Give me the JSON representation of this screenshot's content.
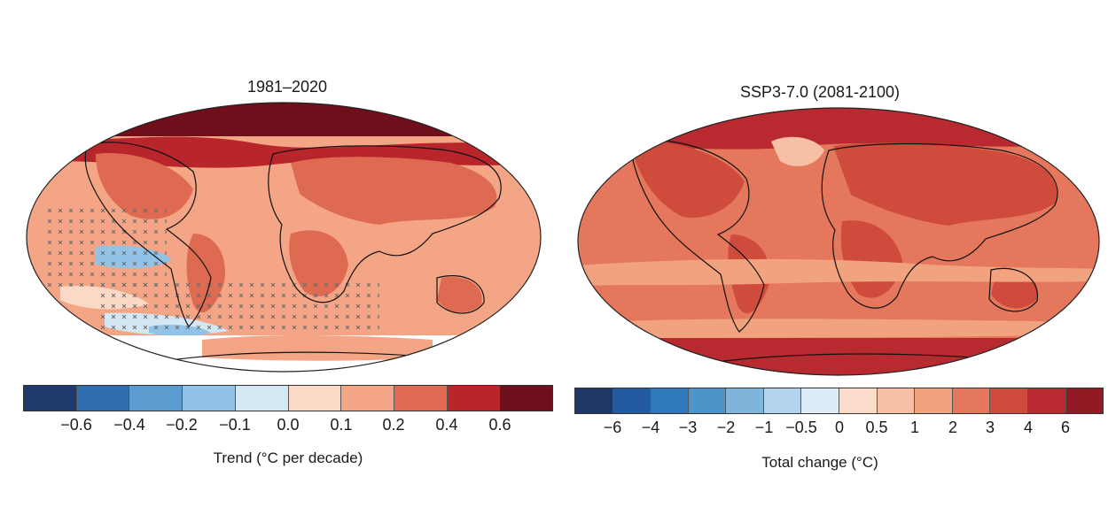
{
  "maps": [
    {
      "title": "1981–2020",
      "colorbar": {
        "label": "Trend (°C per decade)",
        "ticks": [
          "−0.6",
          "−0.4",
          "−0.2",
          "−0.1",
          "0.0",
          "0.1",
          "0.2",
          "0.4",
          "0.6"
        ],
        "colors": [
          "#1f3a6d",
          "#2f6fb0",
          "#5b9bd0",
          "#92c3e6",
          "#d3e7f4",
          "#fbd9c6",
          "#f3a585",
          "#de6a52",
          "#b8252b",
          "#6f0f1c"
        ]
      }
    },
    {
      "title": "SSP3-7.0 (2081-2100)",
      "colorbar": {
        "label": "Total change (°C)",
        "ticks": [
          "−6",
          "−4",
          "−3",
          "−2",
          "−1",
          "−0.5",
          "0",
          "0.5",
          "1",
          "2",
          "3",
          "4",
          "6"
        ],
        "colors": [
          "#1e3765",
          "#245ba0",
          "#2f79ba",
          "#4c95cb",
          "#7fb4db",
          "#b3d4ec",
          "#dcebf6",
          "#fbdccb",
          "#f7bfa4",
          "#f1a27f",
          "#e5785c",
          "#cf4c3d",
          "#b82a2f",
          "#921a24"
        ]
      }
    }
  ]
}
